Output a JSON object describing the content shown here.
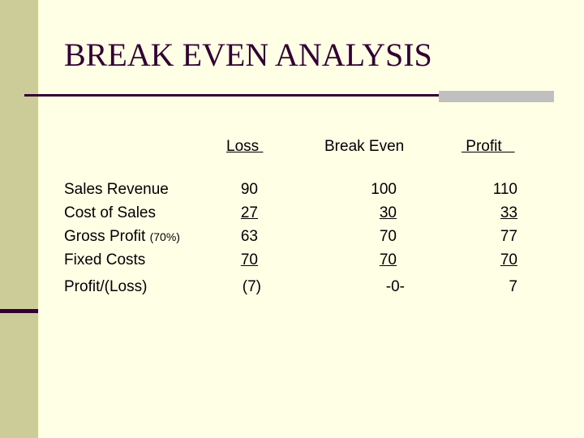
{
  "title": "BREAK EVEN ANALYSIS",
  "headers": {
    "loss": "Loss ",
    "break_even": "Break Even",
    "profit": " Profit   "
  },
  "labels": {
    "sales_revenue": "Sales Revenue",
    "cost_of_sales": "Cost of Sales",
    "gross_profit": "Gross Profit ",
    "gross_profit_note": "(70%)",
    "fixed_costs": "Fixed Costs",
    "profit_loss": "Profit/(Loss)"
  },
  "loss": {
    "sales": "90",
    "cost": "27",
    "gross": "63",
    "fixed": "70",
    "result": "(7)"
  },
  "break_even": {
    "sales": "100",
    "cost": "30",
    "gross": "70",
    "fixed": "70",
    "result": "-0-"
  },
  "profit": {
    "sales": "110",
    "cost": "33",
    "gross": "77",
    "fixed": "70",
    "result": "7"
  }
}
